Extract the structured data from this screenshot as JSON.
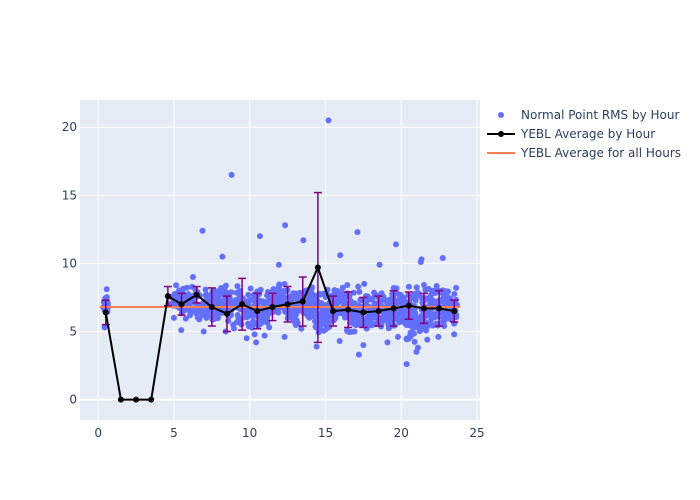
{
  "chart_data": {
    "type": "scatter",
    "xlim": [
      -1.2,
      25.2
    ],
    "ylim": [
      -1.5,
      22
    ],
    "x_ticks": [
      0,
      5,
      10,
      15,
      20,
      25
    ],
    "y_ticks": [
      0,
      5,
      10,
      15,
      20
    ],
    "grid": true,
    "legend_position": "top-right",
    "colors": {
      "plot_bg": "#e5ecf6",
      "grid": "#ffffff",
      "points": "#636efa",
      "average_line": "#000000",
      "error_bars": "#800080",
      "overall_line": "#ff7f50"
    },
    "series": [
      {
        "name": "Normal Point RMS by Hour",
        "kind": "scatter_cloud",
        "x_range": [
          0.3,
          23.7
        ],
        "cloud": [
          {
            "hour": 0,
            "x_range": [
              0.3,
              0.7
            ],
            "min": 5.3,
            "max": 8.1,
            "count": 14
          },
          {
            "hour": 5,
            "x_range": [
              4.8,
              5.3
            ],
            "min": 6.0,
            "max": 8.4,
            "count": 22
          },
          {
            "hour": 6,
            "x_range": [
              5.3,
              6.7
            ],
            "min": 5.1,
            "max": 9.0,
            "count": 60
          },
          {
            "hour": 7,
            "x_range": [
              6.8,
              7.7
            ],
            "min": 5.0,
            "max": 12.4,
            "count": 55
          },
          {
            "hour": 8,
            "x_range": [
              7.7,
              8.7
            ],
            "min": 5.0,
            "max": 10.5,
            "count": 55
          },
          {
            "hour": 9,
            "x_range": [
              8.7,
              10.2
            ],
            "min": 4.5,
            "max": 16.5,
            "count": 70
          },
          {
            "hour": 10,
            "x_range": [
              10.2,
              11.2
            ],
            "min": 4.2,
            "max": 12.0,
            "count": 60
          },
          {
            "hour": 11,
            "x_range": [
              11.2,
              12.2
            ],
            "min": 5.3,
            "max": 9.9,
            "count": 60
          },
          {
            "hour": 12,
            "x_range": [
              12.2,
              13.2
            ],
            "min": 4.6,
            "max": 12.8,
            "count": 60
          },
          {
            "hour": 13,
            "x_range": [
              13.2,
              14.3
            ],
            "min": 5.2,
            "max": 11.7,
            "count": 60
          },
          {
            "hour": 14,
            "x_range": [
              14.3,
              15.3
            ],
            "min": 3.9,
            "max": 20.5,
            "count": 70
          },
          {
            "hour": 15,
            "x_range": [
              15.3,
              16.3
            ],
            "min": 4.3,
            "max": 10.6,
            "count": 60
          },
          {
            "hour": 16,
            "x_range": [
              16.3,
              17.3
            ],
            "min": 3.3,
            "max": 12.3,
            "count": 60
          },
          {
            "hour": 17,
            "x_range": [
              17.3,
              18.3
            ],
            "min": 4.0,
            "max": 8.5,
            "count": 55
          },
          {
            "hour": 18,
            "x_range": [
              18.3,
              19.3
            ],
            "min": 4.2,
            "max": 9.9,
            "count": 60
          },
          {
            "hour": 19,
            "x_range": [
              19.3,
              20.3
            ],
            "min": 4.6,
            "max": 11.4,
            "count": 65
          },
          {
            "hour": 20,
            "x_range": [
              20.3,
              21.3
            ],
            "min": 2.6,
            "max": 10.1,
            "count": 70
          },
          {
            "hour": 21,
            "x_range": [
              21.3,
              22.3
            ],
            "min": 4.4,
            "max": 10.3,
            "count": 65
          },
          {
            "hour": 22,
            "x_range": [
              22.3,
              23.0
            ],
            "min": 4.6,
            "max": 10.4,
            "count": 45
          },
          {
            "hour": 23,
            "x_range": [
              23.0,
              23.7
            ],
            "min": 4.8,
            "max": 8.2,
            "count": 40
          }
        ]
      },
      {
        "name": "YEBL Average by Hour",
        "kind": "line_markers_errorbars",
        "x": [
          0.5,
          1.5,
          2.5,
          3.5,
          4.6,
          5.5,
          6.5,
          7.5,
          8.5,
          9.5,
          10.5,
          11.5,
          12.5,
          13.5,
          14.5,
          15.5,
          16.5,
          17.5,
          18.5,
          19.5,
          20.5,
          21.5,
          22.5,
          23.5
        ],
        "y": [
          6.4,
          0,
          0,
          0,
          7.6,
          7.0,
          7.7,
          6.8,
          6.3,
          7.0,
          6.5,
          6.8,
          7.0,
          7.2,
          9.7,
          6.5,
          6.6,
          6.4,
          6.5,
          6.7,
          6.9,
          6.7,
          6.7,
          6.5
        ],
        "error": [
          0.9,
          0,
          0,
          0,
          0.7,
          0.8,
          0.6,
          1.4,
          1.3,
          1.9,
          1.3,
          1.0,
          1.3,
          1.8,
          5.5,
          1.1,
          1.3,
          1.1,
          1.1,
          1.3,
          1.0,
          1.1,
          1.3,
          0.8
        ]
      },
      {
        "name": "YEBL Average for all Hours",
        "kind": "hline",
        "x_range": [
          0.1,
          23.9
        ],
        "y": 6.8
      }
    ]
  }
}
